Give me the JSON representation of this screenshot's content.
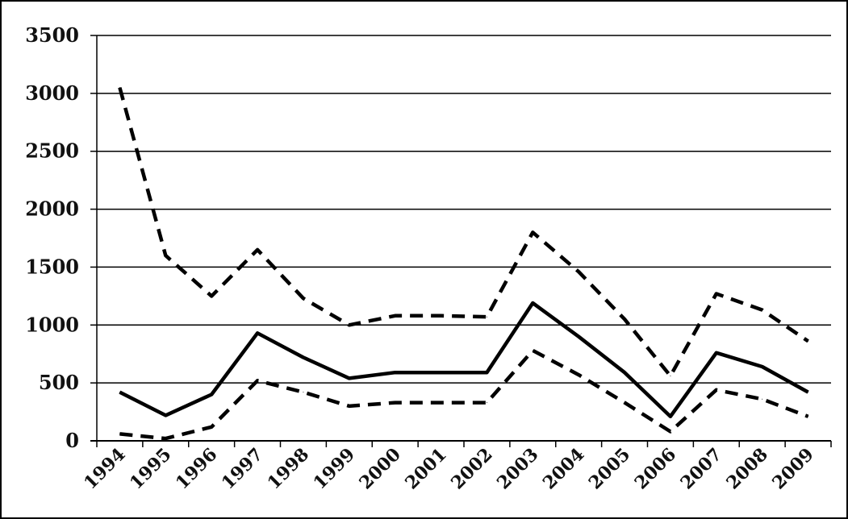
{
  "chart_data": {
    "type": "line",
    "title": "",
    "xlabel": "",
    "ylabel": "",
    "categories": [
      "1994",
      "1995",
      "1996",
      "1997",
      "1998",
      "1999",
      "2000",
      "2001",
      "2002",
      "2003",
      "2004",
      "2005",
      "2006",
      "2007",
      "2008",
      "2009"
    ],
    "ylim": [
      0,
      3500
    ],
    "yticks": [
      "0",
      "500",
      "1000",
      "1500",
      "2000",
      "2500",
      "3000",
      "3500"
    ],
    "grid": true,
    "legend": "none",
    "series": [
      {
        "style": "solid",
        "color": "#000000",
        "values": [
          420,
          220,
          400,
          930,
          720,
          540,
          590,
          590,
          590,
          1190,
          900,
          590,
          210,
          760,
          640,
          420
        ]
      },
      {
        "style": "dashed",
        "color": "#000000",
        "values": [
          3050,
          1600,
          1250,
          1650,
          1230,
          1000,
          1080,
          1080,
          1070,
          1800,
          1460,
          1050,
          560,
          1270,
          1130,
          860
        ]
      },
      {
        "style": "dashed",
        "color": "#000000",
        "values": [
          60,
          20,
          120,
          520,
          420,
          300,
          330,
          330,
          330,
          780,
          570,
          330,
          80,
          440,
          360,
          210
        ]
      }
    ]
  }
}
